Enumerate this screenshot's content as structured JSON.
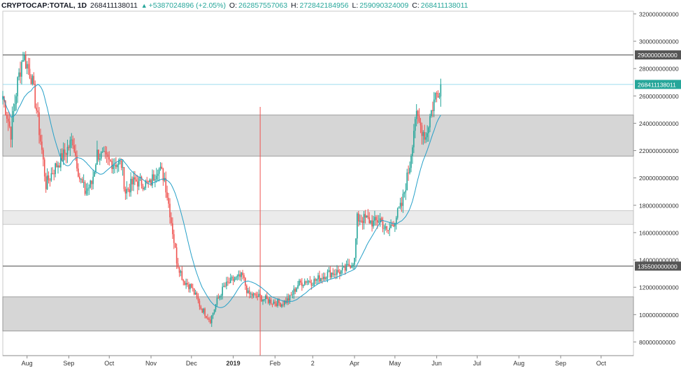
{
  "header": {
    "symbol": "CRYPTOCAP:TOTAL, 1D",
    "last": "268411138011",
    "change": "+5387024896 (+2.05%)",
    "o_label": "O:",
    "o_val": "262857557063",
    "h_label": "H:",
    "h_val": "272842184956",
    "l_label": "L:",
    "l_val": "259090324009",
    "c_label": "C:",
    "c_val": "268411138011"
  },
  "colors": {
    "up": "#26a69a",
    "down": "#ef5350",
    "ma": "#26a0c8",
    "zone": "#d6d6d6",
    "zone_light": "#ebebeb",
    "level": "#6b6b6b",
    "price_line": "#7fd0e8",
    "vline": "#ef5350",
    "price_tag": "#26a69a",
    "level_tag": "#555555"
  },
  "chart_data": {
    "type": "candlestick",
    "title": "CRYPTOCAP:TOTAL, 1D",
    "x_range": [
      "2018-07-14",
      "2019-10-25"
    ],
    "ylim": [
      70000000000,
      322000000000
    ],
    "y_ticks": [
      "320000000000",
      "300000000000",
      "280000000000",
      "260000000000",
      "240000000000",
      "220000000000",
      "200000000000",
      "180000000000",
      "160000000000",
      "140000000000",
      "120000000000",
      "100000000000",
      "80000000000"
    ],
    "x_ticks": [
      {
        "date": "2018-08-01",
        "label": "Aug"
      },
      {
        "date": "2018-09-01",
        "label": "Sep"
      },
      {
        "date": "2018-10-01",
        "label": "Oct"
      },
      {
        "date": "2018-11-01",
        "label": "Nov"
      },
      {
        "date": "2018-12-01",
        "label": "Dec"
      },
      {
        "date": "2019-01-01",
        "label": "2019"
      },
      {
        "date": "2019-02-01",
        "label": "Feb"
      },
      {
        "date": "2019-03-01",
        "label": "2"
      },
      {
        "date": "2019-04-01",
        "label": "Apr"
      },
      {
        "date": "2019-05-01",
        "label": "May"
      },
      {
        "date": "2019-06-01",
        "label": "Jun"
      },
      {
        "date": "2019-07-01",
        "label": "Jul"
      },
      {
        "date": "2019-08-01",
        "label": "Aug"
      },
      {
        "date": "2019-09-01",
        "label": "Sep"
      },
      {
        "date": "2019-10-01",
        "label": "Oct"
      }
    ],
    "zones": [
      {
        "from": 216000000000,
        "to": 246000000000,
        "shade": "dark"
      },
      {
        "from": 166000000000,
        "to": 176000000000,
        "shade": "light"
      },
      {
        "from": 88000000000,
        "to": 113000000000,
        "shade": "dark"
      }
    ],
    "levels": [
      {
        "value": 290000000000,
        "label": "290000000000"
      },
      {
        "value": 135500000000,
        "label": "135500000000"
      }
    ],
    "last_price": {
      "value": 268411138011,
      "label": "268411138011"
    },
    "vertical_marker": {
      "date": "2019-01-21",
      "y_top": 252000000000,
      "y_bottom": 70000000000
    },
    "price_path_anchors": [
      {
        "date": "2018-07-14",
        "close": 260000000000
      },
      {
        "date": "2018-07-20",
        "close": 233000000000
      },
      {
        "date": "2018-07-25",
        "close": 270000000000
      },
      {
        "date": "2018-07-29",
        "close": 290000000000
      },
      {
        "date": "2018-08-04",
        "close": 275000000000
      },
      {
        "date": "2018-08-08",
        "close": 250000000000
      },
      {
        "date": "2018-08-12",
        "close": 220000000000
      },
      {
        "date": "2018-08-15",
        "close": 195000000000
      },
      {
        "date": "2018-08-20",
        "close": 205000000000
      },
      {
        "date": "2018-08-27",
        "close": 215000000000
      },
      {
        "date": "2018-09-04",
        "close": 228000000000
      },
      {
        "date": "2018-09-09",
        "close": 200000000000
      },
      {
        "date": "2018-09-13",
        "close": 190000000000
      },
      {
        "date": "2018-09-18",
        "close": 196000000000
      },
      {
        "date": "2018-09-22",
        "close": 218000000000
      },
      {
        "date": "2018-10-01",
        "close": 212000000000
      },
      {
        "date": "2018-10-10",
        "close": 210000000000
      },
      {
        "date": "2018-10-13",
        "close": 190000000000
      },
      {
        "date": "2018-10-20",
        "close": 198000000000
      },
      {
        "date": "2018-10-31",
        "close": 195000000000
      },
      {
        "date": "2018-11-06",
        "close": 208000000000
      },
      {
        "date": "2018-11-11",
        "close": 200000000000
      },
      {
        "date": "2018-11-15",
        "close": 175000000000
      },
      {
        "date": "2018-11-20",
        "close": 140000000000
      },
      {
        "date": "2018-11-25",
        "close": 125000000000
      },
      {
        "date": "2018-12-01",
        "close": 120000000000
      },
      {
        "date": "2018-12-08",
        "close": 105000000000
      },
      {
        "date": "2018-12-15",
        "close": 96000000000
      },
      {
        "date": "2018-12-20",
        "close": 110000000000
      },
      {
        "date": "2018-12-25",
        "close": 120000000000
      },
      {
        "date": "2018-12-31",
        "close": 125000000000
      },
      {
        "date": "2019-01-08",
        "close": 128000000000
      },
      {
        "date": "2019-01-12",
        "close": 115000000000
      },
      {
        "date": "2019-01-20",
        "close": 113000000000
      },
      {
        "date": "2019-01-28",
        "close": 110000000000
      },
      {
        "date": "2019-02-06",
        "close": 108000000000
      },
      {
        "date": "2019-02-12",
        "close": 112000000000
      },
      {
        "date": "2019-02-18",
        "close": 122000000000
      },
      {
        "date": "2019-02-24",
        "close": 125000000000
      },
      {
        "date": "2019-03-01",
        "close": 124000000000
      },
      {
        "date": "2019-03-12",
        "close": 130000000000
      },
      {
        "date": "2019-03-24",
        "close": 132000000000
      },
      {
        "date": "2019-04-01",
        "close": 140000000000
      },
      {
        "date": "2019-04-03",
        "close": 170000000000
      },
      {
        "date": "2019-04-10",
        "close": 170000000000
      },
      {
        "date": "2019-04-15",
        "close": 167000000000
      },
      {
        "date": "2019-04-20",
        "close": 170000000000
      },
      {
        "date": "2019-04-25",
        "close": 160000000000
      },
      {
        "date": "2019-04-30",
        "close": 168000000000
      },
      {
        "date": "2019-05-06",
        "close": 180000000000
      },
      {
        "date": "2019-05-12",
        "close": 210000000000
      },
      {
        "date": "2019-05-16",
        "close": 245000000000
      },
      {
        "date": "2019-05-20",
        "close": 238000000000
      },
      {
        "date": "2019-05-24",
        "close": 230000000000
      },
      {
        "date": "2019-05-27",
        "close": 245000000000
      },
      {
        "date": "2019-05-31",
        "close": 260000000000
      },
      {
        "date": "2019-06-04",
        "close": 268411138011
      }
    ],
    "moving_average": "on",
    "grid": "on"
  }
}
